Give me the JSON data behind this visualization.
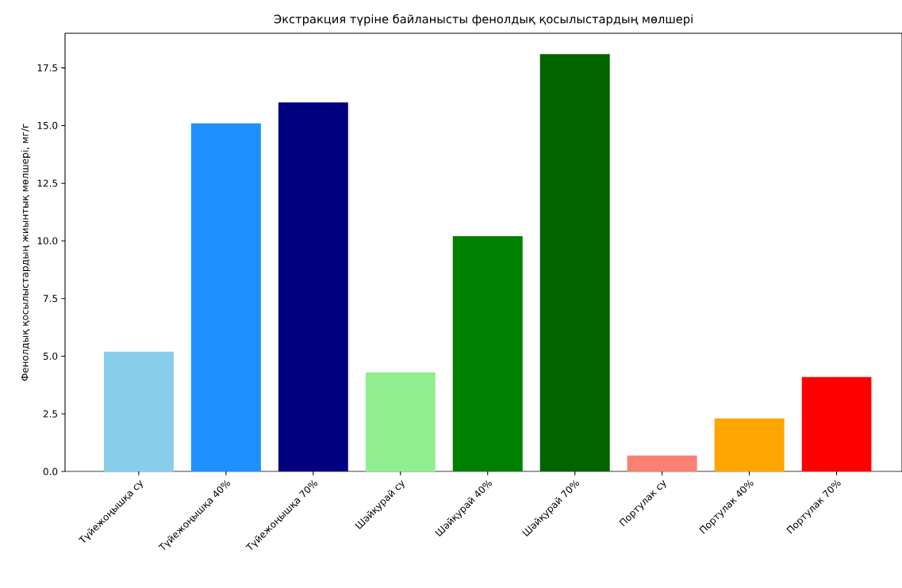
{
  "chart_data": {
    "type": "bar",
    "title": "Экстракция түріне байланысты фенолдық қосылыстардың мөлшері",
    "ylabel": "Фенолдық қосылыстардың жиынтық мөлшері, мг/г",
    "categories": [
      "Түйежоңышқа су",
      "Түйежоңышқа 40%",
      "Түйежоңышқа 70%",
      "Шәйқурай су",
      "Шәйқурай 40%",
      "Шәйқурай 70%",
      "Портулак су",
      "Портулак 40%",
      "Портулак 70%"
    ],
    "values": [
      5.2,
      15.1,
      16.0,
      4.3,
      10.2,
      18.1,
      0.7,
      2.3,
      4.1
    ],
    "colors": [
      "#87ceeb",
      "#1e90ff",
      "#000080",
      "#90ee90",
      "#008000",
      "#006400",
      "#fa8072",
      "#ffa500",
      "#ff0000"
    ],
    "ylim": [
      0,
      19.0
    ],
    "yticks": [
      {
        "value": 0,
        "label": "0.0"
      },
      {
        "value": 2.5,
        "label": "2.5"
      },
      {
        "value": 5,
        "label": "5.0"
      },
      {
        "value": 7.5,
        "label": "7.5"
      },
      {
        "value": 10,
        "label": "10.0"
      },
      {
        "value": 12.5,
        "label": "12.5"
      },
      {
        "value": 15,
        "label": "15.0"
      },
      {
        "value": 17.5,
        "label": "17.5"
      }
    ],
    "grid": false
  }
}
